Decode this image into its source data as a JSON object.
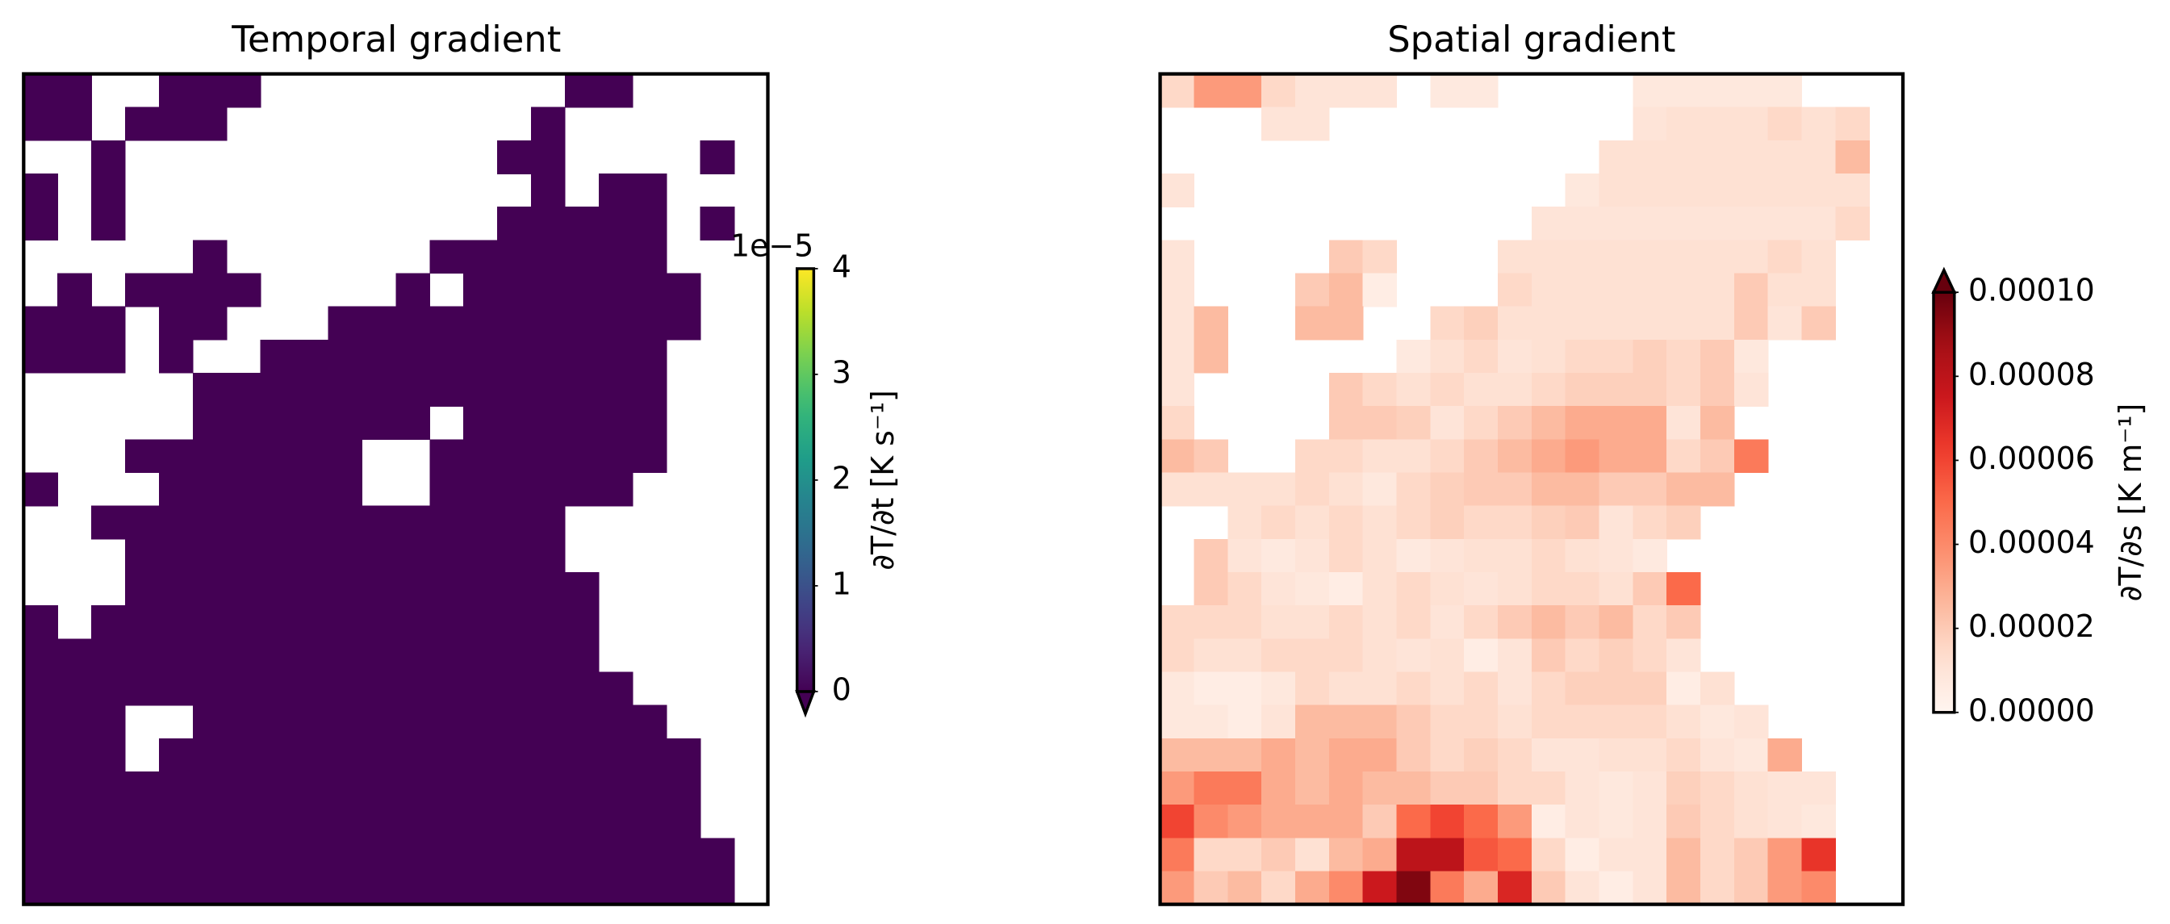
{
  "chart_data": [
    {
      "type": "heatmap",
      "title": "Temporal gradient",
      "colorbar_label": "∂T/∂t [K s⁻¹]",
      "colormap": "viridis",
      "clim": [
        0,
        4
      ],
      "cbar_ticks": [
        0,
        1,
        2,
        3,
        4
      ],
      "offset_text": "1e−5",
      "extend": "min",
      "values": [
        [
          0,
          0,
          null,
          null,
          0,
          0,
          0,
          null,
          null,
          null,
          null,
          null,
          null,
          null,
          null,
          null,
          0,
          0,
          null,
          null,
          null,
          null
        ],
        [
          0,
          0,
          null,
          0,
          0,
          0,
          null,
          null,
          null,
          null,
          null,
          null,
          null,
          null,
          null,
          0,
          null,
          null,
          null,
          null,
          null,
          null
        ],
        [
          null,
          null,
          0,
          null,
          null,
          null,
          null,
          null,
          null,
          null,
          null,
          null,
          null,
          null,
          0,
          0,
          null,
          null,
          null,
          null,
          0,
          null
        ],
        [
          0,
          null,
          0,
          null,
          null,
          null,
          null,
          null,
          null,
          null,
          null,
          null,
          null,
          null,
          null,
          0,
          null,
          0,
          0,
          null,
          null,
          null
        ],
        [
          0,
          null,
          0,
          null,
          null,
          null,
          null,
          null,
          null,
          null,
          null,
          null,
          null,
          null,
          0,
          0,
          0,
          0,
          0,
          null,
          0,
          null
        ],
        [
          null,
          null,
          null,
          null,
          null,
          0,
          null,
          null,
          null,
          null,
          null,
          null,
          0,
          0,
          0,
          0,
          0,
          0,
          0,
          null,
          null,
          null
        ],
        [
          null,
          0,
          null,
          0,
          0,
          0,
          0,
          null,
          null,
          null,
          null,
          0,
          null,
          0,
          0,
          0,
          0,
          0,
          0,
          0,
          null,
          null
        ],
        [
          0,
          0,
          0,
          null,
          0,
          0,
          null,
          null,
          null,
          0,
          0,
          0,
          0,
          0,
          0,
          0,
          0,
          0,
          0,
          0,
          null,
          null
        ],
        [
          0,
          0,
          0,
          null,
          0,
          null,
          null,
          0,
          0,
          0,
          0,
          0,
          0,
          0,
          0,
          0,
          0,
          0,
          0,
          null,
          null,
          null
        ],
        [
          null,
          null,
          null,
          null,
          null,
          0,
          0,
          0,
          0,
          0,
          0,
          0,
          0,
          0,
          0,
          0,
          0,
          0,
          0,
          null,
          null,
          null
        ],
        [
          null,
          null,
          null,
          null,
          null,
          0,
          0,
          0,
          0,
          0,
          0,
          0,
          null,
          0,
          0,
          0,
          0,
          0,
          0,
          null,
          null,
          null
        ],
        [
          null,
          null,
          null,
          0,
          0,
          0,
          0,
          0,
          0,
          0,
          null,
          null,
          0,
          0,
          0,
          0,
          0,
          0,
          0,
          null,
          null,
          null
        ],
        [
          0,
          null,
          null,
          null,
          0,
          0,
          0,
          0,
          0,
          0,
          null,
          null,
          0,
          0,
          0,
          0,
          0,
          0,
          null,
          null,
          null,
          null
        ],
        [
          null,
          null,
          0,
          0,
          0,
          0,
          0,
          0,
          0,
          0,
          0,
          0,
          0,
          0,
          0,
          0,
          null,
          null,
          null,
          null,
          null,
          null
        ],
        [
          null,
          null,
          null,
          0,
          0,
          0,
          0,
          0,
          0,
          0,
          0,
          0,
          0,
          0,
          0,
          0,
          null,
          null,
          null,
          null,
          null,
          null
        ],
        [
          null,
          null,
          null,
          0,
          0,
          0,
          0,
          0,
          0,
          0,
          0,
          0,
          0,
          0,
          0,
          0,
          0,
          null,
          null,
          null,
          null,
          null
        ],
        [
          0,
          null,
          0,
          0,
          0,
          0,
          0,
          0,
          0,
          0,
          0,
          0,
          0,
          0,
          0,
          0,
          0,
          null,
          null,
          null,
          null,
          null
        ],
        [
          0,
          0,
          0,
          0,
          0,
          0,
          0,
          0,
          0,
          0,
          0,
          0,
          0,
          0,
          0,
          0,
          0,
          null,
          null,
          null,
          null,
          null
        ],
        [
          0,
          0,
          0,
          0,
          0,
          0,
          0,
          0,
          0,
          0,
          0,
          0,
          0,
          0,
          0,
          0,
          0,
          0,
          null,
          null,
          null,
          null
        ],
        [
          0,
          0,
          0,
          null,
          null,
          0,
          0,
          0,
          0,
          0,
          0,
          0,
          0,
          0,
          0,
          0,
          0,
          0,
          0,
          null,
          null,
          null
        ],
        [
          0,
          0,
          0,
          null,
          0,
          0,
          0,
          0,
          0,
          0,
          0,
          0,
          0,
          0,
          0,
          0,
          0,
          0,
          0,
          0,
          null,
          null
        ],
        [
          0,
          0,
          0,
          0,
          0,
          0,
          0,
          0,
          0,
          0,
          0,
          0,
          0,
          0,
          0,
          0,
          0,
          0,
          0,
          0,
          null,
          null
        ],
        [
          0,
          0,
          0,
          0,
          0,
          0,
          0,
          0,
          0,
          0,
          0,
          0,
          0,
          0,
          0,
          0,
          0,
          0,
          0,
          0,
          null,
          null
        ],
        [
          0,
          0,
          0,
          0,
          0,
          0,
          0,
          0,
          0,
          0,
          0,
          0,
          0,
          0,
          0,
          0,
          0,
          0,
          0,
          0,
          0,
          null
        ],
        [
          0,
          0,
          0,
          0,
          0,
          0,
          0,
          0,
          0,
          0,
          0,
          0,
          0,
          0,
          0,
          0,
          0,
          0,
          0,
          0,
          0,
          null
        ]
      ]
    },
    {
      "type": "heatmap",
      "title": "Spatial gradient",
      "colorbar_label": "∂T/∂s [K m⁻¹]",
      "colormap": "Reds",
      "clim": [
        0,
        0.0001
      ],
      "extend": "max",
      "cbar_ticks": [
        {
          "value": 0,
          "label": "0.00000"
        },
        {
          "value": 2e-05,
          "label": "0.00002"
        },
        {
          "value": 4e-05,
          "label": "0.00004"
        },
        {
          "value": 6e-05,
          "label": "0.00006"
        },
        {
          "value": 8e-05,
          "label": "0.00008"
        },
        {
          "value": 0.0001,
          "label": "0.00010"
        }
      ],
      "values": [
        [
          1.5e-05,
          3.5e-05,
          3.5e-05,
          1.5e-05,
          1e-05,
          1e-05,
          1e-05,
          null,
          7e-06,
          7e-06,
          null,
          null,
          null,
          null,
          8e-06,
          8e-06,
          8e-06,
          8e-06,
          8e-06,
          null,
          null,
          null
        ],
        [
          null,
          null,
          null,
          1e-05,
          1e-05,
          null,
          null,
          null,
          null,
          null,
          null,
          null,
          null,
          null,
          1e-05,
          1.2e-05,
          1.2e-05,
          1.2e-05,
          1.5e-05,
          1.2e-05,
          1.5e-05,
          null
        ],
        [
          null,
          null,
          null,
          null,
          null,
          null,
          null,
          null,
          null,
          null,
          null,
          null,
          null,
          1.2e-05,
          1.2e-05,
          1.2e-05,
          1.2e-05,
          1.2e-05,
          1.2e-05,
          1.2e-05,
          2.5e-05,
          null
        ],
        [
          1e-05,
          null,
          null,
          null,
          null,
          null,
          null,
          null,
          null,
          null,
          null,
          null,
          8e-06,
          1.2e-05,
          1.2e-05,
          1.2e-05,
          1.2e-05,
          1.2e-05,
          1.2e-05,
          1.2e-05,
          1.2e-05,
          null
        ],
        [
          null,
          null,
          null,
          null,
          null,
          null,
          null,
          null,
          null,
          null,
          null,
          1e-05,
          1e-05,
          1e-05,
          1e-05,
          1e-05,
          1e-05,
          1e-05,
          1e-05,
          1e-05,
          1.5e-05,
          null
        ],
        [
          1e-05,
          null,
          null,
          null,
          null,
          2e-05,
          1.5e-05,
          null,
          null,
          null,
          1.2e-05,
          1.2e-05,
          1.2e-05,
          1.2e-05,
          1.2e-05,
          1.2e-05,
          1.2e-05,
          1.2e-05,
          1.5e-05,
          1.2e-05,
          null,
          null
        ],
        [
          1e-05,
          null,
          null,
          null,
          2e-05,
          2.5e-05,
          5e-06,
          null,
          null,
          null,
          1.5e-05,
          1.2e-05,
          1.2e-05,
          1.2e-05,
          1.2e-05,
          1.2e-05,
          1.2e-05,
          2e-05,
          1.2e-05,
          1.2e-05,
          null,
          null
        ],
        [
          1e-05,
          2.5e-05,
          null,
          null,
          2.5e-05,
          2.5e-05,
          null,
          null,
          1.5e-05,
          1.8e-05,
          1.2e-05,
          1.2e-05,
          1.2e-05,
          1.2e-05,
          1.2e-05,
          1.2e-05,
          1.2e-05,
          2e-05,
          1e-05,
          2e-05,
          null,
          null
        ],
        [
          1e-05,
          2.5e-05,
          null,
          null,
          null,
          null,
          null,
          7e-06,
          1.2e-05,
          1.5e-05,
          1e-05,
          1.2e-05,
          1.5e-05,
          1.5e-05,
          1.8e-05,
          1.5e-05,
          2e-05,
          8e-06,
          null,
          null,
          null,
          null
        ],
        [
          1e-05,
          null,
          null,
          null,
          null,
          2e-05,
          1.5e-05,
          1.2e-05,
          1.5e-05,
          1.2e-05,
          1.2e-05,
          1.5e-05,
          1.8e-05,
          1.8e-05,
          1.8e-05,
          1.5e-05,
          2e-05,
          1e-05,
          null,
          null,
          null,
          null
        ],
        [
          1.5e-05,
          null,
          null,
          null,
          null,
          2e-05,
          2e-05,
          1.8e-05,
          1e-05,
          1.5e-05,
          2e-05,
          2.5e-05,
          3e-05,
          3e-05,
          3e-05,
          1e-05,
          2.5e-05,
          null,
          null,
          null,
          null,
          null
        ],
        [
          2.5e-05,
          2e-05,
          null,
          null,
          1.5e-05,
          1.5e-05,
          1.2e-05,
          1.2e-05,
          1.5e-05,
          2e-05,
          2.5e-05,
          3e-05,
          3.5e-05,
          3e-05,
          3e-05,
          1.5e-05,
          2e-05,
          4.5e-05,
          null,
          null,
          null,
          null
        ],
        [
          1.2e-05,
          1.2e-05,
          1.2e-05,
          1.2e-05,
          1.5e-05,
          1.2e-05,
          8e-06,
          1.5e-05,
          1.8e-05,
          2e-05,
          2e-05,
          2.5e-05,
          2.5e-05,
          2e-05,
          2e-05,
          2.5e-05,
          2.5e-05,
          null,
          null,
          null,
          null,
          null
        ],
        [
          null,
          null,
          1.2e-05,
          1.5e-05,
          1.2e-05,
          1.5e-05,
          1.2e-05,
          1.5e-05,
          1.8e-05,
          1.5e-05,
          1.5e-05,
          1.8e-05,
          2e-05,
          1e-05,
          1.5e-05,
          1.8e-05,
          null,
          null,
          null,
          null,
          null,
          null
        ],
        [
          null,
          2e-05,
          1e-05,
          7e-06,
          1e-05,
          1.5e-05,
          1.2e-05,
          7e-06,
          1e-05,
          1.2e-05,
          1.2e-05,
          1.5e-05,
          1.2e-05,
          1e-05,
          7e-06,
          null,
          null,
          null,
          null,
          null,
          null,
          null
        ],
        [
          null,
          2e-05,
          1.5e-05,
          1e-05,
          8e-06,
          5e-06,
          1.2e-05,
          1.5e-05,
          1.2e-05,
          1e-05,
          1.2e-05,
          1.5e-05,
          1.5e-05,
          1.2e-05,
          2e-05,
          5e-05,
          null,
          null,
          null,
          null,
          null,
          null
        ],
        [
          1.5e-05,
          1.5e-05,
          1.5e-05,
          1.2e-05,
          1.2e-05,
          1.5e-05,
          1.2e-05,
          1.5e-05,
          1e-05,
          1.5e-05,
          2e-05,
          2.5e-05,
          2e-05,
          2.5e-05,
          1.5e-05,
          2e-05,
          null,
          null,
          null,
          null,
          null,
          null
        ],
        [
          1.5e-05,
          1.2e-05,
          1.2e-05,
          1.5e-05,
          1.5e-05,
          1.5e-05,
          1.2e-05,
          1e-05,
          1.2e-05,
          5e-06,
          1e-05,
          2e-05,
          1.5e-05,
          1.8e-05,
          1.5e-05,
          1e-05,
          null,
          null,
          null,
          null,
          null,
          null
        ],
        [
          8e-06,
          5e-06,
          5e-06,
          8e-06,
          1.5e-05,
          1.2e-05,
          1.2e-05,
          1.5e-05,
          1.2e-05,
          1.5e-05,
          1e-05,
          1.5e-05,
          1.8e-05,
          1.8e-05,
          1.8e-05,
          5e-06,
          1.2e-05,
          null,
          null,
          null,
          null,
          null
        ],
        [
          8e-06,
          8e-06,
          5e-06,
          1e-05,
          2.5e-05,
          2.5e-05,
          2.5e-05,
          2e-05,
          1.5e-05,
          1.5e-05,
          1.2e-05,
          1.5e-05,
          1.5e-05,
          1.5e-05,
          1.5e-05,
          1.2e-05,
          8e-06,
          1e-05,
          null,
          null,
          null,
          null
        ],
        [
          2.5e-05,
          2.5e-05,
          2.5e-05,
          3e-05,
          2.5e-05,
          3e-05,
          3e-05,
          2e-05,
          1.5e-05,
          1.8e-05,
          1.5e-05,
          1e-05,
          1e-05,
          1.2e-05,
          1.2e-05,
          1.5e-05,
          1e-05,
          8e-06,
          3e-05,
          null,
          null,
          null
        ],
        [
          3.5e-05,
          4.5e-05,
          4.5e-05,
          3e-05,
          2.5e-05,
          3e-05,
          2.5e-05,
          2.5e-05,
          2e-05,
          2e-05,
          1.5e-05,
          1.5e-05,
          1e-05,
          8e-06,
          1e-05,
          1.8e-05,
          1.5e-05,
          1.2e-05,
          1e-05,
          1e-05,
          null,
          null
        ],
        [
          6e-05,
          4e-05,
          3.5e-05,
          3e-05,
          3e-05,
          3e-05,
          2e-05,
          5e-05,
          6e-05,
          5e-05,
          3.5e-05,
          5e-06,
          1e-05,
          8e-06,
          1e-05,
          2e-05,
          1.5e-05,
          1.2e-05,
          1e-05,
          8e-06,
          null,
          null
        ],
        [
          4.5e-05,
          1.5e-05,
          1.5e-05,
          2e-05,
          1.2e-05,
          2.5e-05,
          3e-05,
          8e-05,
          8e-05,
          5.5e-05,
          5e-05,
          1.5e-05,
          5e-06,
          1e-05,
          1e-05,
          2.5e-05,
          1.5e-05,
          2e-05,
          3.5e-05,
          6.5e-05,
          null,
          null
        ],
        [
          3.5e-05,
          2e-05,
          2.5e-05,
          1.5e-05,
          3e-05,
          4e-05,
          7.5e-05,
          9.5e-05,
          4.5e-05,
          3e-05,
          7e-05,
          2e-05,
          1e-05,
          5e-06,
          1e-05,
          2.5e-05,
          1.5e-05,
          2e-05,
          3.5e-05,
          4e-05,
          null,
          null
        ]
      ]
    }
  ]
}
